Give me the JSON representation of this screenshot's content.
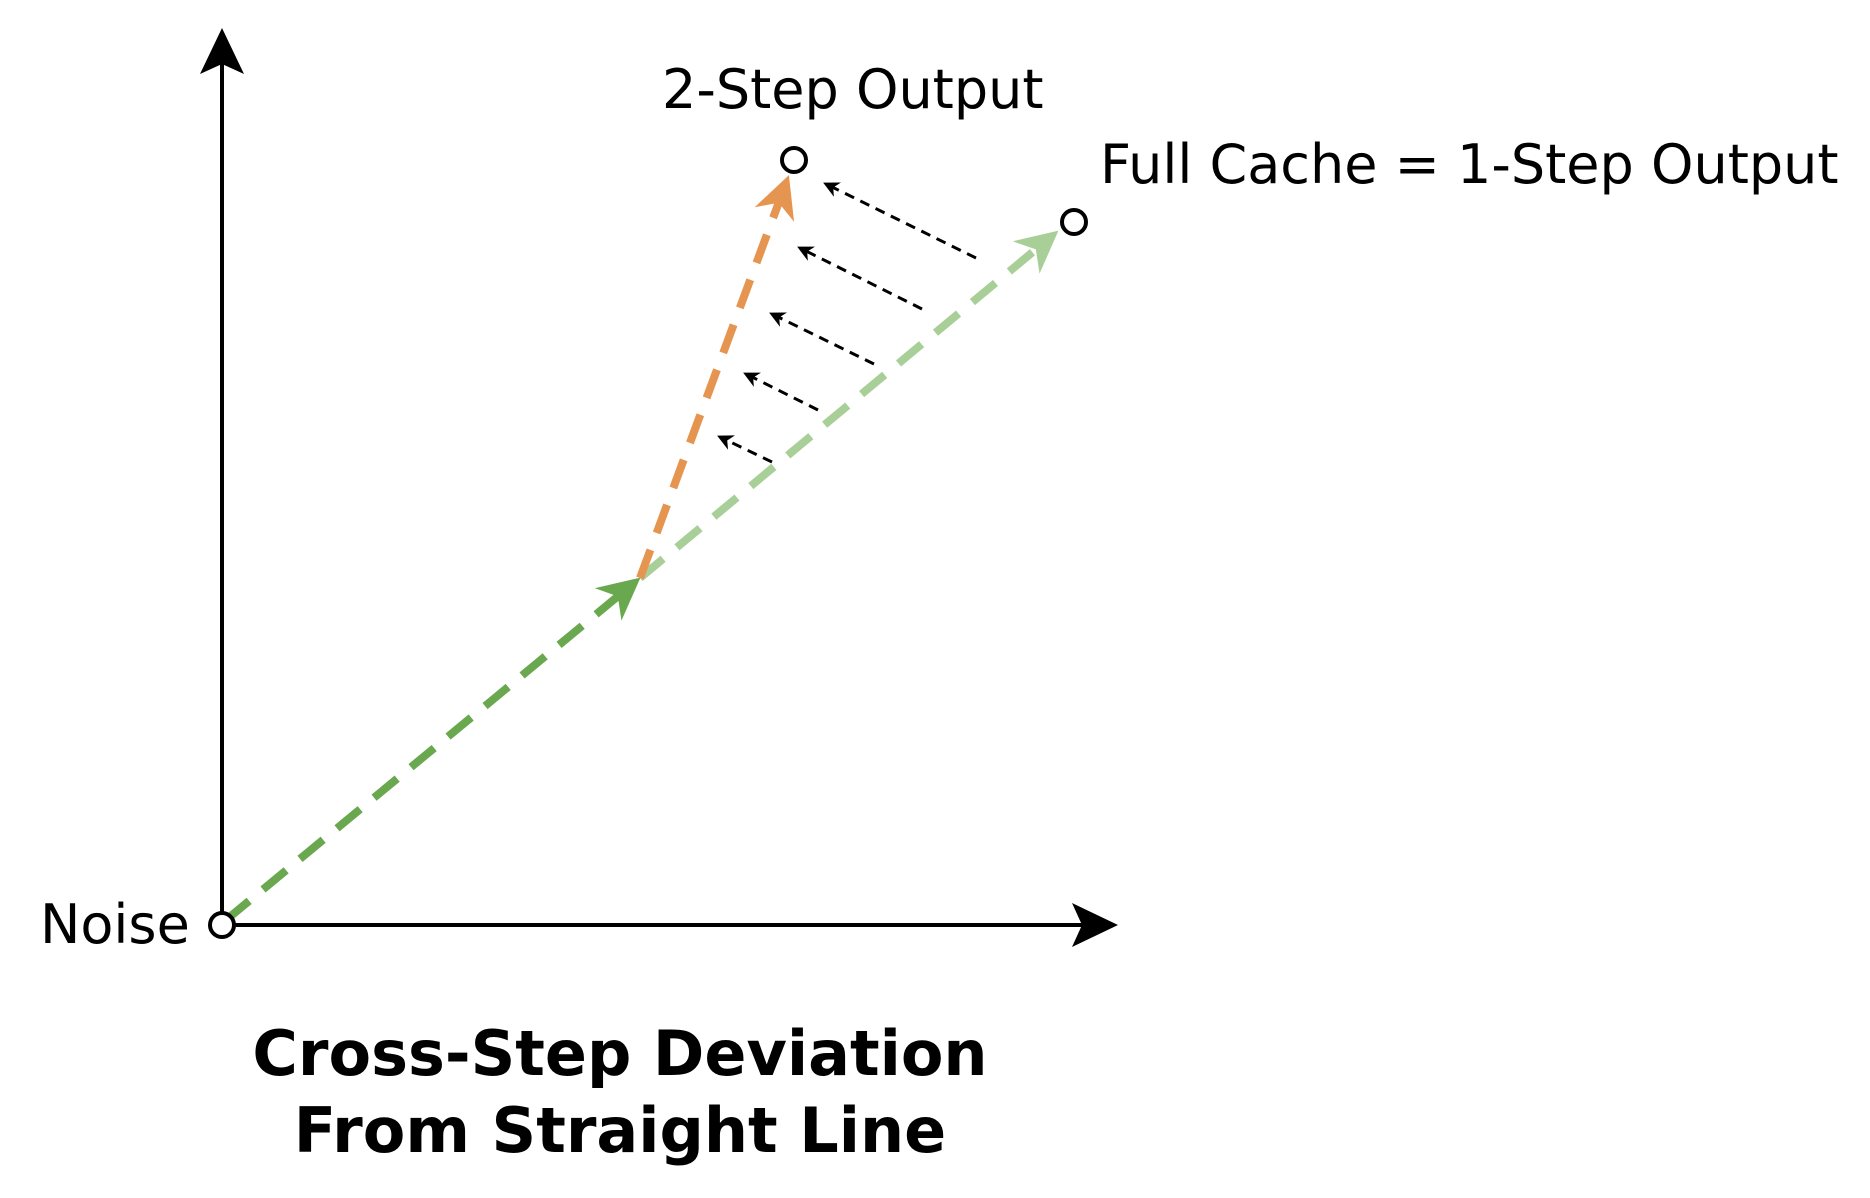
{
  "labels": {
    "noise": "Noise",
    "two_step_output": "2-Step Output",
    "full_cache_output": "Full Cache = 1-Step Output"
  },
  "caption": {
    "line1": "Cross-Step Deviation",
    "line2": "From Straight Line"
  },
  "colors": {
    "axis": "#000000",
    "green_solid": "#6aa84f",
    "green_faded": "#a9cf98",
    "orange": "#e69550",
    "deviation_arrow": "#000000"
  }
}
